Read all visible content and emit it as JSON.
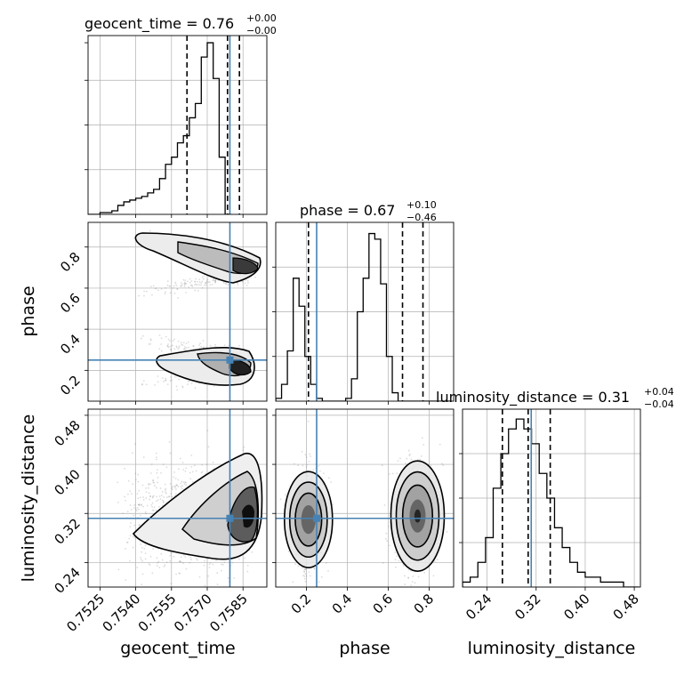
{
  "chart_data": {
    "type": "corner",
    "parameters": [
      {
        "name": "geocent_time",
        "title_value": "0.76",
        "err_plus": "+0.00",
        "err_minus": "−0.00",
        "range": [
          0.752,
          0.7595
        ],
        "ticks": [
          0.7525,
          0.754,
          0.7555,
          0.757,
          0.7585
        ],
        "tick_labels": [
          "0.7525",
          "0.7540",
          "0.7555",
          "0.7570",
          "0.7585"
        ],
        "truth": 0.75795,
        "quantiles": [
          0.75615,
          0.75785,
          0.75835
        ]
      },
      {
        "name": "phase",
        "title_value": "0.67",
        "err_plus": "+0.10",
        "err_minus": "−0.46",
        "range": [
          0.05,
          0.92
        ],
        "ticks": [
          0.2,
          0.4,
          0.6,
          0.8
        ],
        "tick_labels": [
          "0.2",
          "0.4",
          "0.6",
          "0.8"
        ],
        "truth": 0.25,
        "quantiles": [
          0.21,
          0.67,
          0.77
        ]
      },
      {
        "name": "luminosity_distance",
        "title_value": "0.31",
        "err_plus": "+0.04",
        "err_minus": "−0.04",
        "range": [
          0.2,
          0.49
        ],
        "ticks": [
          0.24,
          0.32,
          0.4,
          0.48
        ],
        "tick_labels": [
          "0.24",
          "0.32",
          "0.40",
          "0.48"
        ],
        "truth": 0.312,
        "quantiles": [
          0.265,
          0.307,
          0.343
        ]
      }
    ],
    "hist_geocent_time": {
      "x_start": 0.752,
      "bin_width": 0.00025,
      "values": [
        0,
        0,
        1,
        1,
        2,
        5,
        7,
        8,
        9,
        10,
        12,
        14,
        20,
        28,
        32,
        40,
        44,
        54,
        62,
        88,
        96,
        76,
        32,
        0
      ]
    },
    "hist_phase": {
      "x_start": 0.05,
      "bin_width": 0.0285,
      "values": [
        1,
        6,
        18,
        44,
        34,
        16,
        6,
        1,
        0,
        0,
        0,
        0,
        1,
        8,
        32,
        44,
        60,
        58,
        42,
        16,
        3,
        0,
        0,
        0,
        0,
        0,
        0,
        0,
        0,
        0
      ]
    },
    "hist_luminosity_distance": {
      "x_start": 0.2,
      "bin_width": 0.0125,
      "values": [
        1,
        2,
        5,
        10,
        20,
        27,
        32,
        34,
        32,
        29,
        23,
        18,
        12,
        8,
        5,
        3,
        2,
        2,
        1,
        1,
        1,
        0,
        0
      ]
    },
    "hist_ylim": {
      "geocent_time": [
        0,
        100
      ],
      "phase": [
        0,
        64
      ],
      "luminosity_distance": [
        0,
        36
      ]
    },
    "colors": {
      "truth": "#4682b4",
      "contour": "#000000",
      "hist": "#000000",
      "grid": "#b0b0b0",
      "points": "#808080"
    },
    "grid": true
  }
}
